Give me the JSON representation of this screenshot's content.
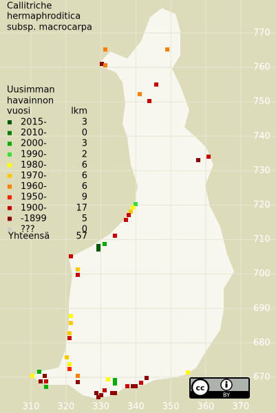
{
  "title": [
    "Callitriche",
    "hermaphroditica",
    "subsp. macrocarpa"
  ],
  "legend": {
    "header": [
      "Uusimman",
      "havainnon",
      "vuosi"
    ],
    "count_header": "lkm",
    "rows": [
      {
        "label": "2015-",
        "count": 3,
        "color": "#005a00"
      },
      {
        "label": "2010-",
        "count": 0,
        "color": "#008000"
      },
      {
        "label": "2000-",
        "count": 3,
        "color": "#00b000"
      },
      {
        "label": "1990-",
        "count": 2,
        "color": "#33e033"
      },
      {
        "label": "1980-",
        "count": 6,
        "color": "#ffff00"
      },
      {
        "label": "1970-",
        "count": 6,
        "color": "#ffc800"
      },
      {
        "label": "1960-",
        "count": 6,
        "color": "#ff8000"
      },
      {
        "label": "1950-",
        "count": 9,
        "color": "#ff2000"
      },
      {
        "label": "1900-",
        "count": 17,
        "color": "#cc0000"
      },
      {
        "label": "-1899",
        "count": 5,
        "color": "#900000"
      },
      {
        "label": "???",
        "count": 0,
        "color": "#cccccc"
      }
    ],
    "total_label": "Yhteensä",
    "total": 57
  },
  "grid": {
    "north": [
      770,
      760,
      750,
      740,
      730,
      720,
      710,
      700,
      690,
      680,
      670
    ],
    "east": [
      310,
      320,
      330,
      340,
      350,
      360,
      370
    ]
  },
  "license": {
    "badge": "cc",
    "label": "BY"
  }
}
